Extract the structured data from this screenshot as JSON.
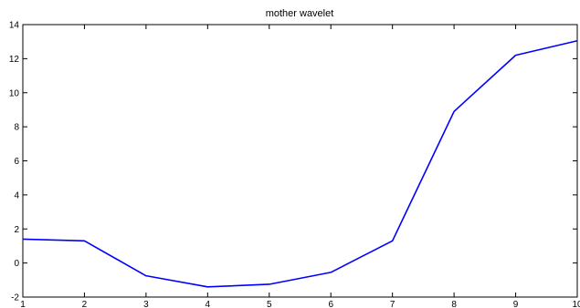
{
  "chart_data": {
    "type": "line",
    "title": "mother wavelet",
    "xlabel": "",
    "ylabel": "",
    "xlim": [
      1,
      10
    ],
    "ylim": [
      -2,
      14
    ],
    "xticks": [
      1,
      2,
      3,
      4,
      5,
      6,
      7,
      8,
      9,
      10
    ],
    "yticks": [
      -2,
      0,
      2,
      4,
      6,
      8,
      10,
      12,
      14
    ],
    "grid": false,
    "legend": "none",
    "series": [
      {
        "color": "#0000ff",
        "x": [
          1,
          2,
          3,
          4,
          5,
          6,
          7,
          8,
          9,
          10
        ],
        "y": [
          1.4,
          1.3,
          -0.75,
          -1.4,
          -1.25,
          -0.55,
          1.3,
          8.9,
          12.2,
          13.05
        ]
      }
    ]
  }
}
